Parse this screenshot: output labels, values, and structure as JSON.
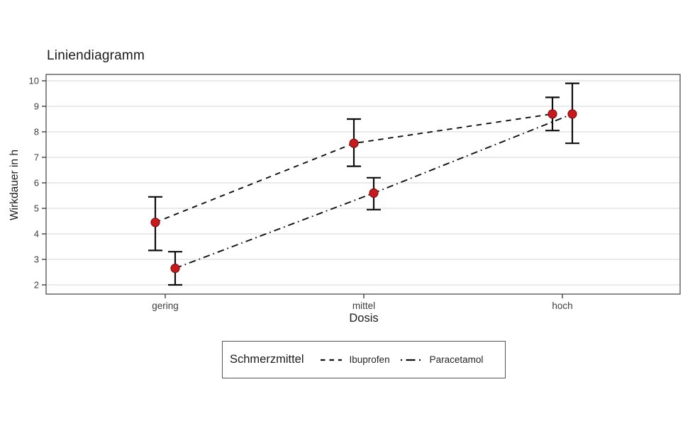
{
  "chart_data": {
    "type": "line",
    "title": "Liniendiagramm",
    "categories": [
      "gering",
      "mittel",
      "hoch"
    ],
    "xlabel": "Dosis",
    "ylabel": "Wirkdauer in h",
    "ylim": [
      2,
      10
    ],
    "yticks": [
      2,
      3,
      4,
      5,
      6,
      7,
      8,
      9,
      10
    ],
    "grid": "horizontal-major",
    "legend_position": "bottom",
    "legend_title": "Schmerzmittel",
    "point_color": "#c9191d",
    "point_edge_color": "#821114",
    "line_color": "#111111",
    "errorbar_color": "#0d0d0d",
    "series": [
      {
        "name": "Ibuprofen",
        "linestyle": "dashed",
        "values": [
          4.45,
          7.55,
          8.7
        ],
        "ci_low": [
          3.35,
          6.65,
          8.05
        ],
        "ci_high": [
          5.45,
          8.5,
          9.35
        ]
      },
      {
        "name": "Paracetamol",
        "linestyle": "dashdot",
        "values": [
          2.65,
          5.6,
          8.7
        ],
        "ci_low": [
          2.0,
          4.95,
          7.55
        ],
        "ci_high": [
          3.3,
          6.2,
          9.9
        ]
      }
    ]
  }
}
